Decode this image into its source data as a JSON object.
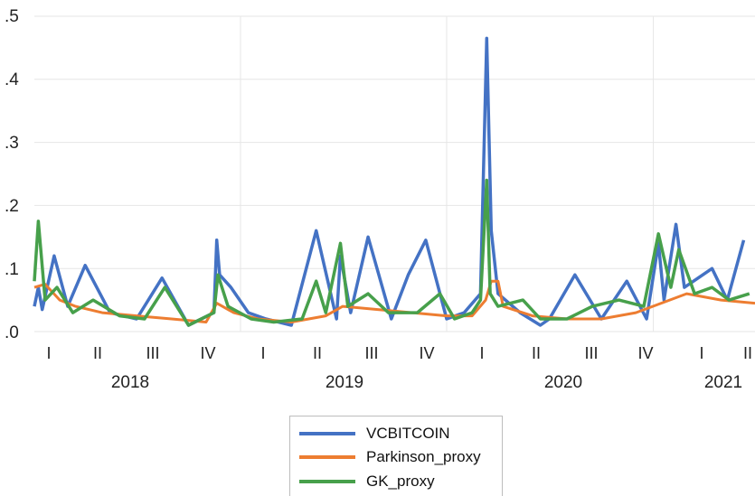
{
  "chart_data": {
    "type": "line",
    "title": "",
    "xlabel": "",
    "ylabel": "",
    "x_range": [
      "2018-01-01",
      "2021-06-30"
    ],
    "ylim": [
      0,
      0.5
    ],
    "y_ticks": [
      ".0",
      ".1",
      ".2",
      ".3",
      ".4",
      ".5"
    ],
    "x_quarter_ticks": [
      "I",
      "II",
      "III",
      "IV",
      "I",
      "II",
      "III",
      "IV",
      "I",
      "II",
      "III",
      "IV",
      "I",
      "II"
    ],
    "x_year_ticks": [
      "2018",
      "2019",
      "2020",
      "2021"
    ],
    "grid": "vertical-yearly-and-horizontal",
    "legend_position": "bottom",
    "series": [
      {
        "name": "VCBITCOIN",
        "color": "#4472C4",
        "x": [
          "2018-01-01",
          "2018-01-08",
          "2018-01-15",
          "2018-02-05",
          "2018-03-01",
          "2018-04-01",
          "2018-05-15",
          "2018-07-01",
          "2018-08-15",
          "2018-10-01",
          "2018-11-15",
          "2018-11-20",
          "2018-11-25",
          "2018-12-15",
          "2019-01-15",
          "2019-02-15",
          "2019-04-01",
          "2019-05-15",
          "2019-06-20",
          "2019-06-27",
          "2019-07-15",
          "2019-08-15",
          "2019-09-25",
          "2019-10-25",
          "2019-11-25",
          "2020-01-01",
          "2020-02-01",
          "2020-03-01",
          "2020-03-12",
          "2020-03-20",
          "2020-04-01",
          "2020-05-10",
          "2020-06-15",
          "2020-07-01",
          "2020-08-15",
          "2020-10-01",
          "2020-11-15",
          "2020-12-20",
          "2021-01-10",
          "2021-01-20",
          "2021-02-10",
          "2021-02-25",
          "2021-04-15",
          "2021-05-12",
          "2021-06-10"
        ],
        "values": [
          0.04,
          0.07,
          0.035,
          0.12,
          0.04,
          0.105,
          0.03,
          0.02,
          0.085,
          0.01,
          0.03,
          0.145,
          0.09,
          0.07,
          0.03,
          0.02,
          0.01,
          0.16,
          0.02,
          0.12,
          0.03,
          0.15,
          0.02,
          0.09,
          0.145,
          0.02,
          0.03,
          0.06,
          0.465,
          0.16,
          0.06,
          0.03,
          0.01,
          0.02,
          0.09,
          0.02,
          0.08,
          0.02,
          0.14,
          0.05,
          0.17,
          0.07,
          0.1,
          0.05,
          0.145
        ]
      },
      {
        "name": "Parkinson_proxy",
        "color": "#ED7D31",
        "x": [
          "2018-01-01",
          "2018-01-20",
          "2018-02-15",
          "2018-03-15",
          "2018-05-01",
          "2018-07-01",
          "2018-09-01",
          "2018-11-01",
          "2018-11-20",
          "2018-12-20",
          "2019-02-01",
          "2019-04-01",
          "2019-06-01",
          "2019-07-01",
          "2019-09-01",
          "2019-11-01",
          "2020-01-01",
          "2020-02-15",
          "2020-03-10",
          "2020-03-20",
          "2020-04-01",
          "2020-04-10",
          "2020-06-01",
          "2020-08-01",
          "2020-10-01",
          "2020-12-01",
          "2021-01-15",
          "2021-03-01",
          "2021-05-01",
          "2021-06-30"
        ],
        "values": [
          0.07,
          0.075,
          0.05,
          0.04,
          0.03,
          0.025,
          0.02,
          0.015,
          0.045,
          0.03,
          0.02,
          0.015,
          0.025,
          0.04,
          0.035,
          0.03,
          0.025,
          0.025,
          0.05,
          0.08,
          0.08,
          0.04,
          0.025,
          0.02,
          0.02,
          0.03,
          0.045,
          0.06,
          0.05,
          0.045
        ]
      },
      {
        "name": "GK_proxy",
        "color": "#47A04B",
        "x": [
          "2018-01-01",
          "2018-01-08",
          "2018-01-20",
          "2018-02-10",
          "2018-03-10",
          "2018-04-15",
          "2018-06-01",
          "2018-07-15",
          "2018-08-20",
          "2018-10-01",
          "2018-11-15",
          "2018-11-22",
          "2018-12-10",
          "2019-01-20",
          "2019-03-01",
          "2019-04-20",
          "2019-05-15",
          "2019-06-01",
          "2019-06-27",
          "2019-07-10",
          "2019-08-15",
          "2019-09-20",
          "2019-11-10",
          "2019-12-20",
          "2020-01-15",
          "2020-02-15",
          "2020-03-01",
          "2020-03-12",
          "2020-03-18",
          "2020-04-01",
          "2020-05-15",
          "2020-06-15",
          "2020-08-01",
          "2020-09-15",
          "2020-11-01",
          "2020-12-15",
          "2021-01-10",
          "2021-02-01",
          "2021-02-15",
          "2021-03-15",
          "2021-04-15",
          "2021-05-15",
          "2021-06-20"
        ],
        "values": [
          0.08,
          0.175,
          0.05,
          0.07,
          0.03,
          0.05,
          0.025,
          0.02,
          0.07,
          0.01,
          0.03,
          0.09,
          0.04,
          0.02,
          0.015,
          0.02,
          0.08,
          0.03,
          0.14,
          0.04,
          0.06,
          0.03,
          0.03,
          0.06,
          0.02,
          0.03,
          0.05,
          0.24,
          0.06,
          0.04,
          0.05,
          0.02,
          0.02,
          0.04,
          0.05,
          0.04,
          0.155,
          0.07,
          0.13,
          0.06,
          0.07,
          0.05,
          0.06
        ]
      }
    ]
  }
}
